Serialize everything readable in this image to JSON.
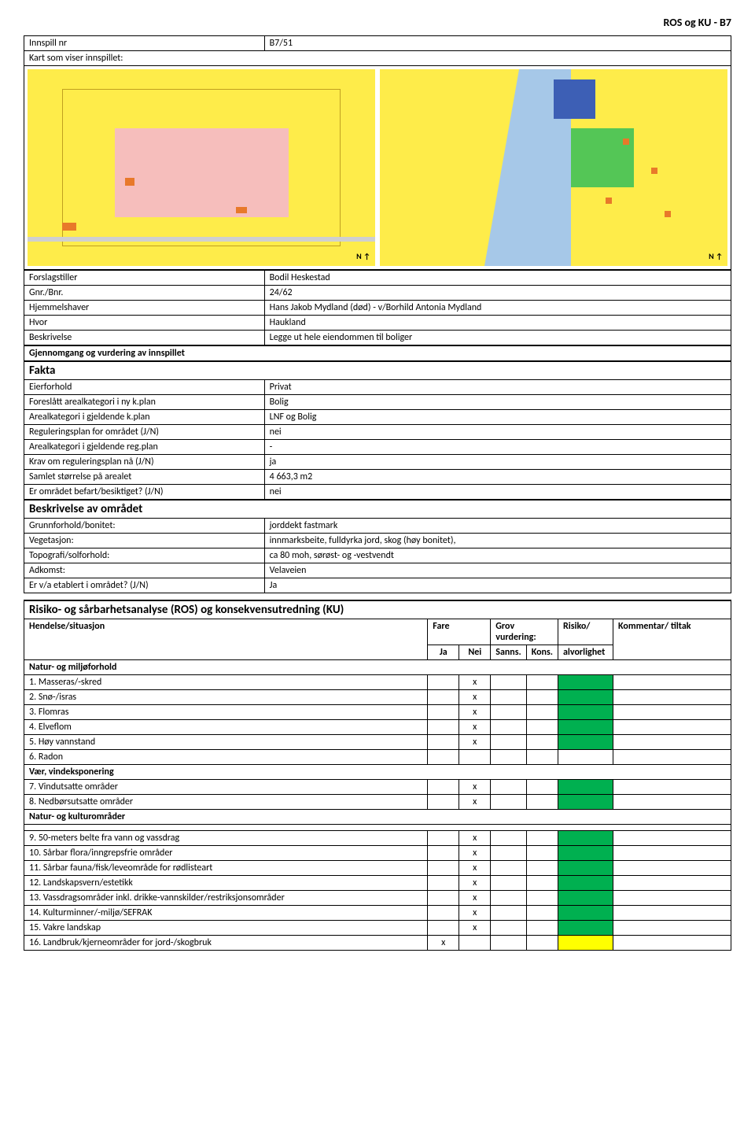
{
  "header_id": "ROS og KU - B7",
  "intro": {
    "innspill_label": "Innspill nr",
    "innspill_value": "B7/51",
    "kart_label": "Kart som viser innspillet:"
  },
  "info_rows": [
    {
      "label": "Forslagstiller",
      "value": "Bodil Heskestad"
    },
    {
      "label": "Gnr./Bnr.",
      "value": "24/62"
    },
    {
      "label": "Hjemmelshaver",
      "value": "Hans Jakob Mydland (død) - v/Borhild Antonia Mydland"
    },
    {
      "label": "Hvor",
      "value": "Haukland"
    },
    {
      "label": "Beskrivelse",
      "value": "Legge ut hele eiendommen til boliger"
    }
  ],
  "gj_header": "Gjennomgang og vurdering av innspillet",
  "fakta_header": "Fakta",
  "fakta_rows": [
    {
      "label": "Eierforhold",
      "value": "Privat"
    },
    {
      "label": "Foreslått arealkategori i ny k.plan",
      "value": "Bolig"
    },
    {
      "label": "Arealkategori i gjeldende k.plan",
      "value": "LNF og Bolig"
    },
    {
      "label": "Reguleringsplan for området (J/N)",
      "value": "nei"
    },
    {
      "label": "Arealkategori i gjeldende reg.plan",
      "value": "-"
    },
    {
      "label": "Krav om reguleringsplan nå (J/N)",
      "value": "ja"
    },
    {
      "label": "Samlet størrelse på arealet",
      "value": "4 663,3 m2"
    },
    {
      "label": "Er området befart/besiktiget? (J/N)",
      "value": "nei"
    }
  ],
  "besk_header": "Beskrivelse av området",
  "besk_rows": [
    {
      "label": "Grunnforhold/bonitet:",
      "value": "jorddekt fastmark"
    },
    {
      "label": "Vegetasjon:",
      "value": "innmarksbeite, fulldyrka jord, skog (høy bonitet),"
    },
    {
      "label": "Topografi/solforhold:",
      "value": "ca 80 moh, sørøst- og -vestvendt"
    },
    {
      "label": "Adkomst:",
      "value": "Velaveien"
    },
    {
      "label": "Er v/a etablert i området? (J/N)",
      "value": "Ja"
    }
  ],
  "ros_header": "Risiko- og sårbarhetsanalyse (ROS) og konsekvensutredning (KU)",
  "ros_cols": {
    "hendelse": "Hendelse/situasjon",
    "fare": "Fare",
    "grov": "Grov vurdering:",
    "risiko": "Risiko/",
    "ja": "Ja",
    "nei": "Nei",
    "sanns": "Sanns.",
    "kons": "Kons.",
    "alvor": "alvorlighet",
    "kommentar": "Kommentar/ tiltak"
  },
  "natur_header": "Natur- og miljøforhold",
  "natur_rows": [
    {
      "label": "1. Masseras/-skred",
      "nei": "x",
      "risk": "green"
    },
    {
      "label": "2. Snø-/isras",
      "nei": "x",
      "risk": "green"
    },
    {
      "label": "3. Flomras",
      "nei": "x",
      "risk": "green"
    },
    {
      "label": "4. Elveflom",
      "nei": "x",
      "risk": "green"
    },
    {
      "label": "5. Høy vannstand",
      "nei": "x",
      "risk": "green"
    },
    {
      "label": "6. Radon",
      "risk": ""
    }
  ],
  "vind_header": "Vær, vindeksponering",
  "vind_rows": [
    {
      "label": "7. Vindutsatte områder",
      "nei": "x",
      "risk": "green"
    },
    {
      "label": "8. Nedbørsutsatte områder",
      "nei": "x",
      "risk": "green"
    }
  ],
  "kultur_header": "Natur- og kulturområder",
  "kultur_rows": [
    {
      "label": "9. 50-meters belte fra vann og vassdrag",
      "nei": "x",
      "risk": "green"
    },
    {
      "label": "10. Sårbar flora/inngrepsfrie områder",
      "nei": "x",
      "risk": "green"
    },
    {
      "label": "11. Sårbar fauna/fisk/leveområde for rødlisteart",
      "nei": "x",
      "risk": "green"
    },
    {
      "label": "12. Landskapsvern/estetikk",
      "nei": "x",
      "risk": "green"
    },
    {
      "label": "13. Vassdragsområder inkl. drikke-vannskilder/restriksjonsområder",
      "nei": "x",
      "risk": "green"
    },
    {
      "label": "14. Kulturminner/-miljø/SEFRAK",
      "nei": "x",
      "risk": "green"
    },
    {
      "label": "15. Vakre landskap",
      "nei": "x",
      "risk": "green"
    },
    {
      "label": "16. Landbruk/kjerneområder for jord-/skogbruk",
      "ja": "x",
      "risk": "yellow"
    }
  ],
  "map_colors": {
    "land_yellow": "#feec4a",
    "land_pink": "#f5b6d0",
    "building_orange": "#e8792a",
    "water_blue": "#a6c8e8",
    "park_green": "#54c656",
    "road_grey": "#cfcfcf",
    "building_blue": "#3d5fb5"
  }
}
